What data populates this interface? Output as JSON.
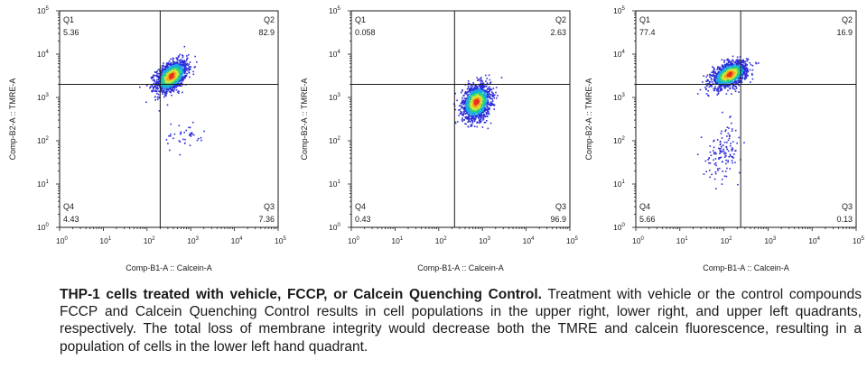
{
  "chart_data": [
    {
      "type": "scatter",
      "xlabel": "Comp-B1-A :: Calcein-A",
      "ylabel": "Comp-B2-A :: TMRE-A",
      "x_scale": "log",
      "y_scale": "log",
      "xlim": [
        1,
        100000
      ],
      "ylim": [
        1,
        100000
      ],
      "x_ticks": [
        "10^0",
        "10^1",
        "10^2",
        "10^3",
        "10^4",
        "10^5"
      ],
      "y_ticks": [
        "10^0",
        "10^1",
        "10^2",
        "10^3",
        "10^4",
        "10^5"
      ],
      "gate": {
        "x": 200,
        "y": 2000
      },
      "quadrants": [
        {
          "name": "Q1",
          "value": "5.36"
        },
        {
          "name": "Q2",
          "value": "82.9"
        },
        {
          "name": "Q4",
          "value": "4.43"
        },
        {
          "name": "Q3",
          "value": "7.36"
        }
      ],
      "populations": [
        {
          "cx": 350,
          "cy": 3200,
          "sx": 0.18,
          "sy": 0.18,
          "rho": 0.45,
          "n": 1400
        },
        {
          "cx": 700,
          "cy": 130,
          "sx": 0.25,
          "sy": 0.18,
          "rho": 0.0,
          "n": 40
        }
      ]
    },
    {
      "type": "scatter",
      "xlabel": "Comp-B1-A :: Calcein-A",
      "ylabel": "Comp-B2-A :: TMRE-A",
      "x_scale": "log",
      "y_scale": "log",
      "xlim": [
        1,
        100000
      ],
      "ylim": [
        1,
        100000
      ],
      "x_ticks": [
        "10^0",
        "10^1",
        "10^2",
        "10^3",
        "10^4",
        "10^5"
      ],
      "y_ticks": [
        "10^0",
        "10^1",
        "10^2",
        "10^3",
        "10^4",
        "10^5"
      ],
      "gate": {
        "x": 230,
        "y": 2000
      },
      "quadrants": [
        {
          "name": "Q1",
          "value": "0.058"
        },
        {
          "name": "Q2",
          "value": "2.63"
        },
        {
          "name": "Q4",
          "value": "0.43"
        },
        {
          "name": "Q3",
          "value": "96.9"
        }
      ],
      "populations": [
        {
          "cx": 700,
          "cy": 800,
          "sx": 0.16,
          "sy": 0.2,
          "rho": 0.2,
          "n": 1500
        }
      ]
    },
    {
      "type": "scatter",
      "xlabel": "Comp-B1-A :: Calcein-A",
      "ylabel": "Comp-B2-A :: TMRE-A",
      "x_scale": "log",
      "y_scale": "log",
      "xlim": [
        1,
        100000
      ],
      "ylim": [
        1,
        100000
      ],
      "x_ticks": [
        "10^0",
        "10^1",
        "10^2",
        "10^3",
        "10^4",
        "10^5"
      ],
      "y_ticks": [
        "10^0",
        "10^1",
        "10^2",
        "10^3",
        "10^4",
        "10^5"
      ],
      "gate": {
        "x": 240,
        "y": 2000
      },
      "quadrants": [
        {
          "name": "Q1",
          "value": "77.4"
        },
        {
          "name": "Q2",
          "value": "16.9"
        },
        {
          "name": "Q4",
          "value": "5.66"
        },
        {
          "name": "Q3",
          "value": "0.13"
        }
      ],
      "populations": [
        {
          "cx": 130,
          "cy": 3500,
          "sx": 0.2,
          "sy": 0.15,
          "rho": 0.45,
          "n": 1300
        },
        {
          "cx": 95,
          "cy": 60,
          "sx": 0.2,
          "sy": 0.3,
          "rho": 0.2,
          "n": 130
        }
      ]
    }
  ],
  "caption": {
    "bold": "THP-1 cells treated with vehicle, FCCP, or Calcein Quenching Control.",
    "text": " Treatment with vehicle or the control compounds FCCP and Calcein Quenching Control results in cell populations in the upper right, lower right, and upper left quadrants, respectively. The total loss of membrane integrity would decrease both the TMRE and calcein fluorescence, resulting in a population of cells in the lower left hand quadrant."
  },
  "colors": {
    "axis": "#1a1a1a",
    "density": [
      "#2b2bd8",
      "#1aa6e8",
      "#2fd37a",
      "#d8e83a",
      "#f5a623",
      "#e8321e"
    ]
  }
}
